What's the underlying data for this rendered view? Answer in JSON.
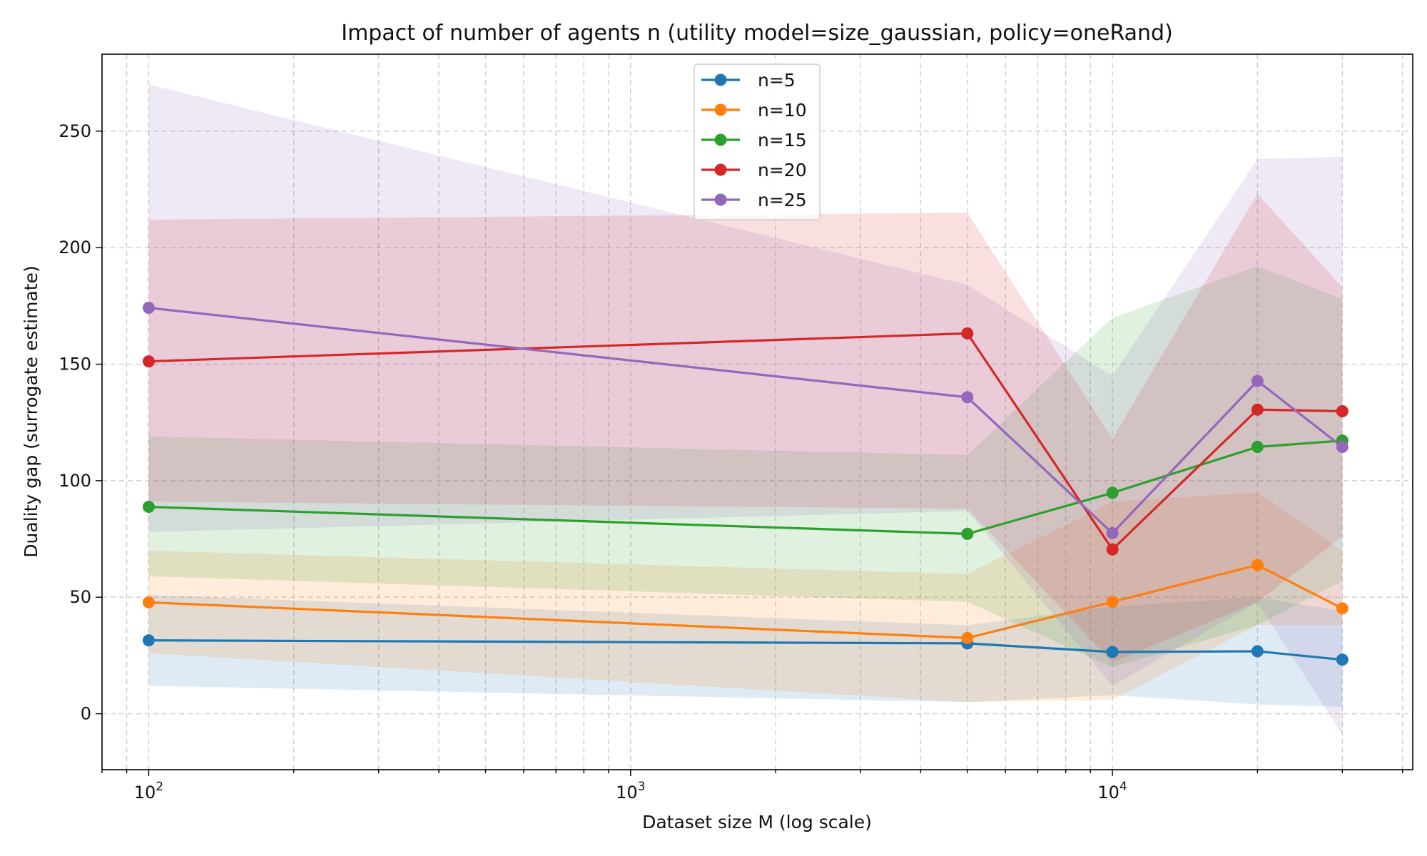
{
  "chart_data": {
    "type": "line",
    "title": "Impact of number of agents n (utility model=size_gaussian, policy=oneRand)",
    "xlabel": "Dataset size M (log scale)",
    "ylabel": "Duality gap (surrogate estimate)",
    "xscale": "log",
    "xlim": [
      80,
      42000
    ],
    "ylim": [
      -24,
      283
    ],
    "x_ticks": [
      {
        "value": 100,
        "base": "10",
        "exp": "2"
      },
      {
        "value": 1000,
        "base": "10",
        "exp": "3"
      },
      {
        "value": 10000,
        "base": "10",
        "exp": "4"
      }
    ],
    "y_ticks": [
      0,
      50,
      100,
      150,
      200,
      250
    ],
    "grid": true,
    "legend_position": "top-center",
    "x": [
      100,
      5000,
      10000,
      20000,
      30000
    ],
    "series": [
      {
        "name": "n=5",
        "color": "#1f77b4",
        "values": [
          31.5,
          30.2,
          26.5,
          26.8,
          23.2
        ],
        "lower": [
          12,
          5,
          8,
          4,
          3
        ],
        "upper": [
          51,
          38,
          46,
          50,
          44
        ]
      },
      {
        "name": "n=10",
        "color": "#ff7f0e",
        "values": [
          47.8,
          32.5,
          48,
          63.8,
          45.2
        ],
        "lower": [
          26,
          5,
          6,
          38,
          38
        ],
        "upper": [
          70,
          60,
          91,
          95,
          70
        ]
      },
      {
        "name": "n=15",
        "color": "#2ca02c",
        "values": [
          88.8,
          77.2,
          94.8,
          114.5,
          117.2
        ],
        "lower": [
          59,
          48,
          20,
          38,
          57
        ],
        "upper": [
          119,
          111,
          170,
          192,
          178
        ]
      },
      {
        "name": "n=20",
        "color": "#d62728",
        "values": [
          151.2,
          163.2,
          70.5,
          130.5,
          129.8
        ],
        "lower": [
          91,
          88,
          22,
          48,
          76
        ],
        "upper": [
          212,
          215,
          118,
          223,
          183
        ]
      },
      {
        "name": "n=25",
        "color": "#9467bd",
        "values": [
          174.2,
          135.8,
          77.5,
          142.8,
          114.5
        ],
        "lower": [
          78,
          87,
          12,
          48,
          -9
        ],
        "upper": [
          270,
          184,
          145,
          238,
          239
        ]
      }
    ]
  }
}
